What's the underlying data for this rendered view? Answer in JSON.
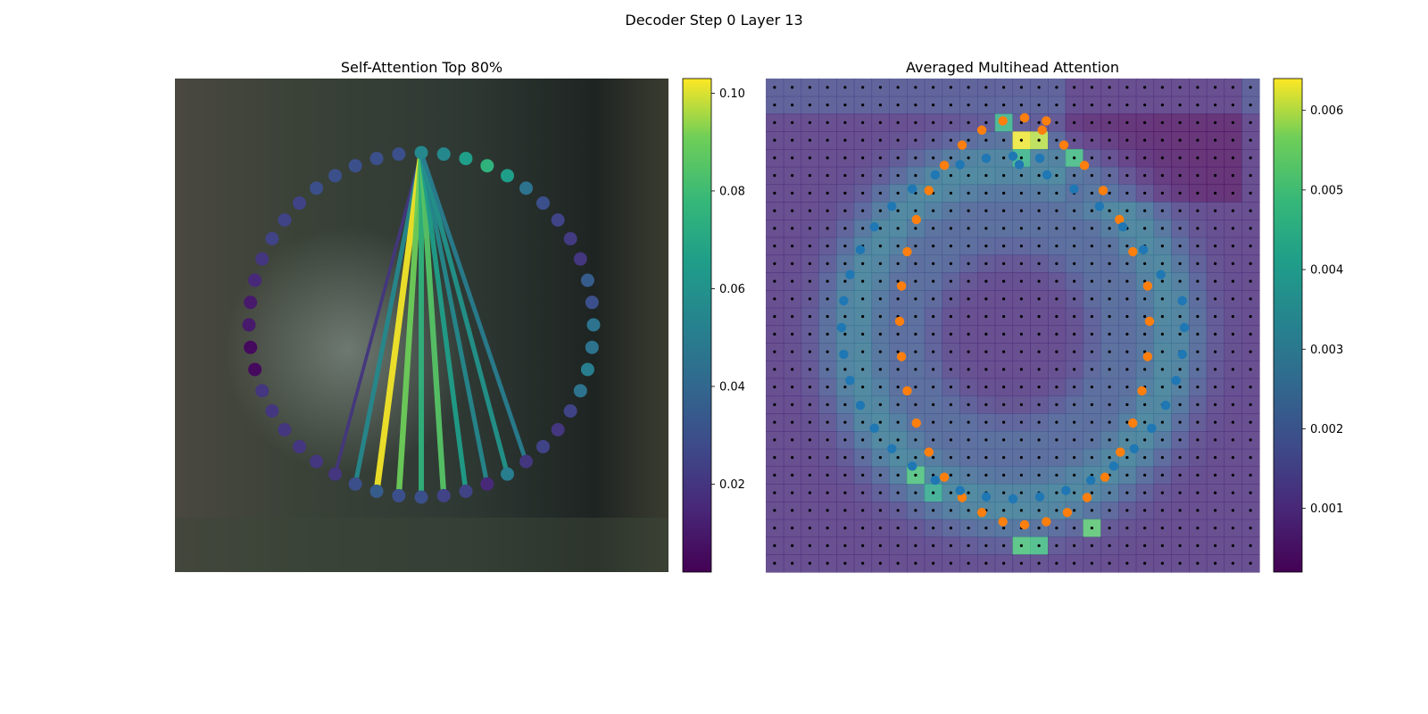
{
  "figure": {
    "title": "Decoder Step 0 Layer 13"
  },
  "chart_data": [
    {
      "type": "scatter",
      "title": "Self-Attention Top 80%",
      "description_axes": "hidden",
      "n_points": 48,
      "query_index": 12,
      "point_values": [
        0.045,
        0.03,
        0.035,
        0.02,
        0.022,
        0.025,
        0.03,
        0.045,
        0.065,
        0.075,
        0.065,
        0.055,
        0.055,
        0.03,
        0.03,
        0.03,
        0.03,
        0.03,
        0.025,
        0.025,
        0.025,
        0.02,
        0.015,
        0.01,
        0.01,
        0.005,
        0.005,
        0.02,
        0.02,
        0.02,
        0.02,
        0.02,
        0.02,
        0.03,
        0.035,
        0.03,
        0.03,
        0.025,
        0.025,
        0.015,
        0.05,
        0.02,
        0.025,
        0.02,
        0.025,
        0.045,
        0.05,
        0.045
      ],
      "edges": [
        {
          "to": 32,
          "weight": 0.02
        },
        {
          "to": 33,
          "weight": 0.055
        },
        {
          "to": 34,
          "weight": 0.102
        },
        {
          "to": 35,
          "weight": 0.09
        },
        {
          "to": 36,
          "weight": 0.075
        },
        {
          "to": 37,
          "weight": 0.085
        },
        {
          "to": 38,
          "weight": 0.065
        },
        {
          "to": 39,
          "weight": 0.055
        },
        {
          "to": 40,
          "weight": 0.06
        },
        {
          "to": 41,
          "weight": 0.05
        }
      ],
      "colorbar": {
        "min": 0.002,
        "max": 0.103,
        "ticks": [
          "0.02",
          "0.04",
          "0.06",
          "0.08",
          "0.10"
        ],
        "tick_values": [
          0.02,
          0.04,
          0.06,
          0.08,
          0.1
        ],
        "colormap": "viridis"
      }
    },
    {
      "type": "heatmap",
      "title": "Averaged Multihead Attention",
      "grid": {
        "rows": 28,
        "cols": 28
      },
      "hot_spots": [
        {
          "row": 3,
          "col": 14,
          "value": 0.0063
        },
        {
          "row": 3,
          "col": 15,
          "value": 0.006
        },
        {
          "row": 2,
          "col": 13,
          "value": 0.0045
        },
        {
          "row": 4,
          "col": 14,
          "value": 0.0045
        },
        {
          "row": 4,
          "col": 17,
          "value": 0.0048
        },
        {
          "row": 22,
          "col": 8,
          "value": 0.005
        },
        {
          "row": 25,
          "col": 18,
          "value": 0.0052
        },
        {
          "row": 26,
          "col": 14,
          "value": 0.005
        },
        {
          "row": 26,
          "col": 15,
          "value": 0.0048
        },
        {
          "row": 23,
          "col": 9,
          "value": 0.0042
        }
      ],
      "series": [
        {
          "color": "#ff7f0e"
        },
        {
          "color": "#1f77b4"
        }
      ],
      "colorbar": {
        "min": 0.0002,
        "max": 0.0064,
        "ticks": [
          "0.001",
          "0.002",
          "0.003",
          "0.004",
          "0.005",
          "0.006"
        ],
        "tick_values": [
          0.001,
          0.002,
          0.003,
          0.004,
          0.005,
          0.006
        ],
        "colormap": "viridis"
      }
    }
  ]
}
